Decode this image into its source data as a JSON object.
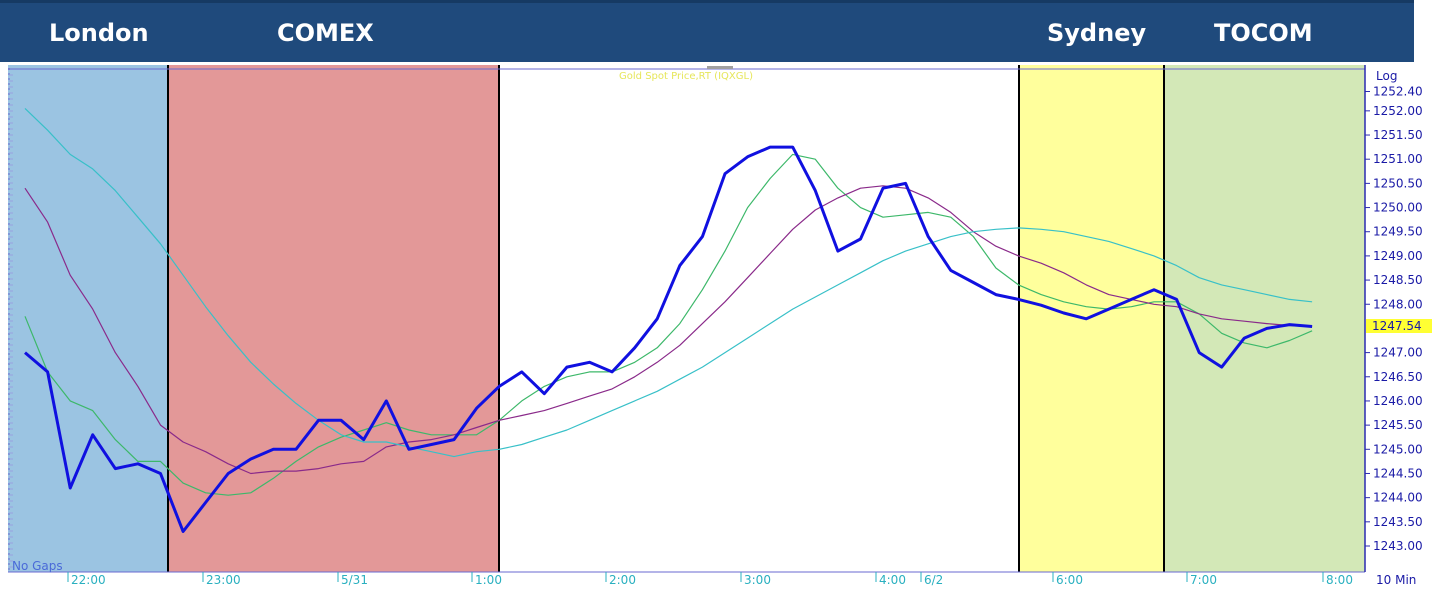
{
  "sessions": [
    {
      "name": "London",
      "color": "#9bc4e2"
    },
    {
      "name": "COMEX",
      "color": "#e39898"
    },
    {
      "name": "Sydney",
      "color": "#ffff9c"
    },
    {
      "name": "TOCOM",
      "color": "#d3e8b7"
    }
  ],
  "banner_color": "#1f4a7c",
  "chart_data": {
    "type": "line",
    "title": "Gold Spot Price,RT (IQXGL)",
    "scale_label": "Log",
    "interval_label": "10 Min",
    "gaps_label": "No Gaps",
    "last_price": "1247.54",
    "ylim": [
      1242.7,
      1252.7
    ],
    "y_ticks": [
      1243.0,
      1243.5,
      1244.0,
      1244.5,
      1245.0,
      1245.5,
      1246.0,
      1246.5,
      1247.0,
      1248.0,
      1248.5,
      1249.0,
      1249.5,
      1250.0,
      1250.5,
      1251.0,
      1251.5,
      1252.0,
      1252.4
    ],
    "y_tick_labels": [
      "1243.00",
      "1243.50",
      "1244.00",
      "1244.50",
      "1245.00",
      "1245.50",
      "1246.00",
      "1246.50",
      "1247.00",
      "1248.00",
      "1248.50",
      "1249.00",
      "1249.50",
      "1250.00",
      "1250.50",
      "1251.00",
      "1251.50",
      "1252.00",
      "1252.40"
    ],
    "x_ticks": [
      "22:00",
      "23:00",
      "5/31",
      "1:00",
      "2:00",
      "3:00",
      "4:00",
      "6/2",
      "6:00",
      "7:00",
      "8:00"
    ],
    "series": [
      {
        "color": "#1010e0",
        "values": [
          1247.0,
          1246.6,
          1244.2,
          1245.3,
          1244.6,
          1244.7,
          1244.5,
          1243.3,
          1243.9,
          1244.5,
          1244.8,
          1245.0,
          1245.0,
          1245.6,
          1245.6,
          1245.2,
          1246.0,
          1245.0,
          1245.1,
          1245.2,
          1245.85,
          1246.3,
          1246.6,
          1246.15,
          1246.7,
          1246.8,
          1246.6,
          1247.1,
          1247.7,
          1248.8,
          1249.4,
          1250.7,
          1251.05,
          1251.25,
          1251.25,
          1250.35,
          1249.1,
          1249.35,
          1250.4,
          1250.5,
          1249.4,
          1248.7,
          1248.45,
          1248.2,
          1248.1,
          1247.98,
          1247.82,
          1247.7,
          1247.9,
          1248.1,
          1248.3,
          1248.1,
          1247.0,
          1246.7,
          1247.3,
          1247.5,
          1247.58,
          1247.54
        ]
      },
      {
        "color": "#3db86a",
        "values": [
          1247.75,
          1246.6,
          1246.0,
          1245.8,
          1245.2,
          1244.75,
          1244.75,
          1244.3,
          1244.1,
          1244.05,
          1244.1,
          1244.4,
          1244.75,
          1245.05,
          1245.25,
          1245.4,
          1245.55,
          1245.4,
          1245.3,
          1245.3,
          1245.3,
          1245.6,
          1246.0,
          1246.3,
          1246.5,
          1246.6,
          1246.6,
          1246.8,
          1247.1,
          1247.6,
          1248.3,
          1249.1,
          1250.0,
          1250.6,
          1251.1,
          1251.0,
          1250.4,
          1250.0,
          1249.8,
          1249.85,
          1249.9,
          1249.8,
          1249.4,
          1248.75,
          1248.4,
          1248.2,
          1248.05,
          1247.95,
          1247.9,
          1247.95,
          1248.05,
          1248.05,
          1247.8,
          1247.4,
          1247.2,
          1247.1,
          1247.25,
          1247.45
        ]
      },
      {
        "color": "#8a2a8a",
        "values": [
          1250.4,
          1249.7,
          1248.6,
          1247.9,
          1247.0,
          1246.3,
          1245.5,
          1245.15,
          1244.95,
          1244.7,
          1244.5,
          1244.55,
          1244.55,
          1244.6,
          1244.7,
          1244.75,
          1245.05,
          1245.15,
          1245.2,
          1245.3,
          1245.45,
          1245.6,
          1245.7,
          1245.8,
          1245.95,
          1246.1,
          1246.25,
          1246.5,
          1246.8,
          1247.15,
          1247.6,
          1248.05,
          1248.55,
          1249.05,
          1249.55,
          1249.95,
          1250.2,
          1250.4,
          1250.45,
          1250.4,
          1250.2,
          1249.9,
          1249.5,
          1249.2,
          1249.0,
          1248.85,
          1248.65,
          1248.4,
          1248.2,
          1248.1,
          1248.0,
          1247.95,
          1247.8,
          1247.7,
          1247.65,
          1247.6,
          1247.56,
          1247.54
        ]
      },
      {
        "color": "#38c0c8",
        "values": [
          1252.05,
          1251.6,
          1251.1,
          1250.8,
          1250.35,
          1249.8,
          1249.25,
          1248.6,
          1247.95,
          1247.35,
          1246.8,
          1246.35,
          1245.95,
          1245.6,
          1245.3,
          1245.15,
          1245.15,
          1245.05,
          1244.95,
          1244.85,
          1244.95,
          1245.0,
          1245.1,
          1245.25,
          1245.4,
          1245.6,
          1245.8,
          1246.0,
          1246.2,
          1246.45,
          1246.7,
          1247.0,
          1247.3,
          1247.6,
          1247.9,
          1248.15,
          1248.4,
          1248.65,
          1248.9,
          1249.1,
          1249.25,
          1249.4,
          1249.5,
          1249.55,
          1249.58,
          1249.55,
          1249.5,
          1249.4,
          1249.3,
          1249.15,
          1249.0,
          1248.8,
          1248.55,
          1248.4,
          1248.3,
          1248.2,
          1248.1,
          1248.05
        ]
      }
    ]
  }
}
